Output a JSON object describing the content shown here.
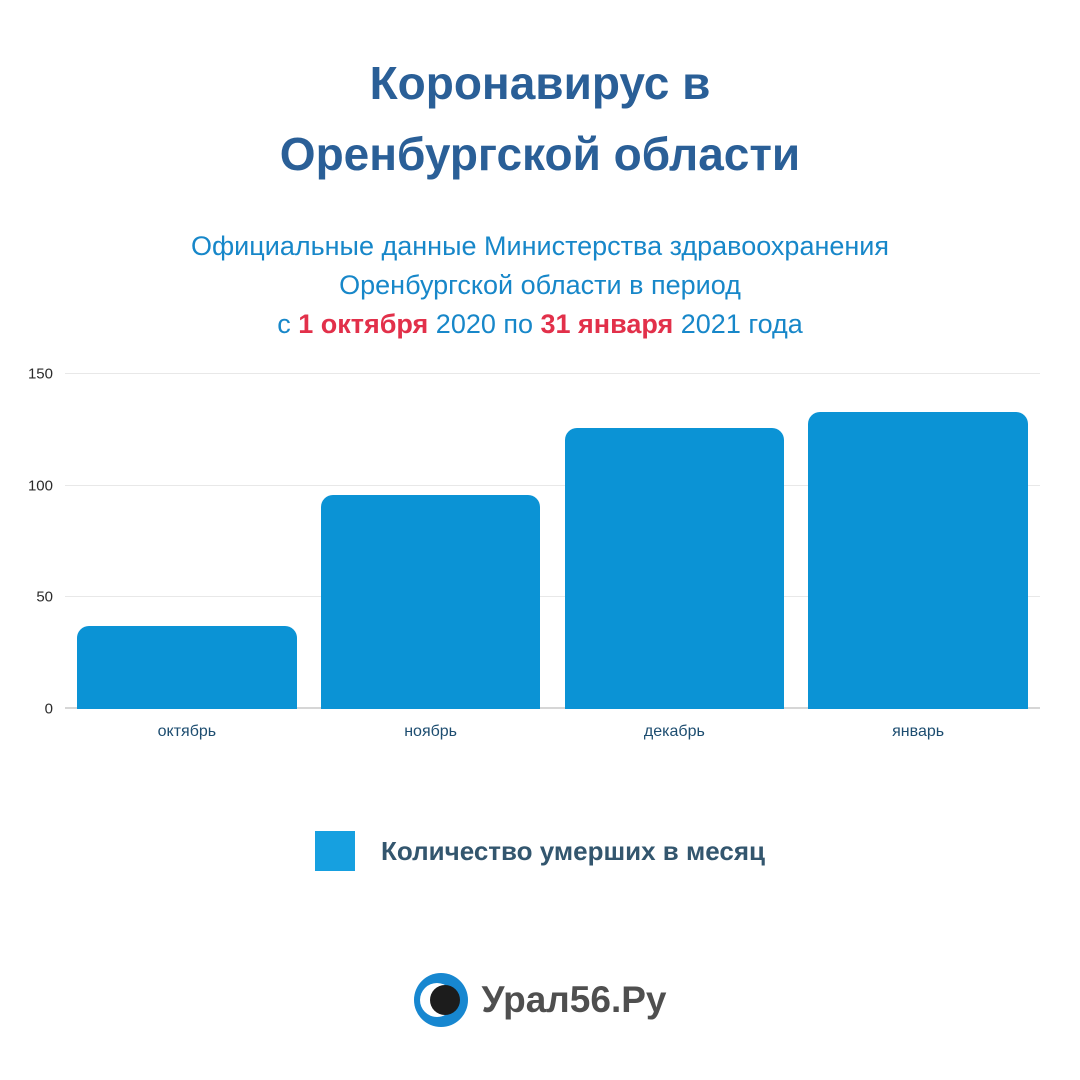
{
  "title": {
    "line1": "Коронавирус в",
    "line2": "Оренбургской области"
  },
  "subtitle": {
    "line1": "Официальные данные Министерства здравоохранения",
    "line2": "Оренбургской области в период",
    "line3": {
      "p1": "с ",
      "date1": "1 октября",
      "p2": " 2020 по ",
      "date2": "31 января",
      "p3": " 2021 года"
    }
  },
  "chart_data": {
    "type": "bar",
    "categories": [
      "октябрь",
      "ноябрь",
      "декабрь",
      "январь"
    ],
    "values": [
      37,
      96,
      126,
      133
    ],
    "title": "Количество умерших в месяц",
    "xlabel": "",
    "ylabel": "",
    "ylim": [
      0,
      150
    ],
    "yticks": [
      0,
      50,
      100,
      150
    ],
    "grid": "horizontal",
    "legend_position": "bottom",
    "bar_color": "#0b93d5"
  },
  "legend": {
    "label": "Количество умерших в месяц",
    "swatch_color": "#16a0e0"
  },
  "footer": {
    "brand": "Урал56.Ру"
  },
  "colors": {
    "title": "#2a5f97",
    "subtitle": "#1787c9",
    "highlight_red": "#e2304a",
    "bar": "#0b93d5"
  }
}
